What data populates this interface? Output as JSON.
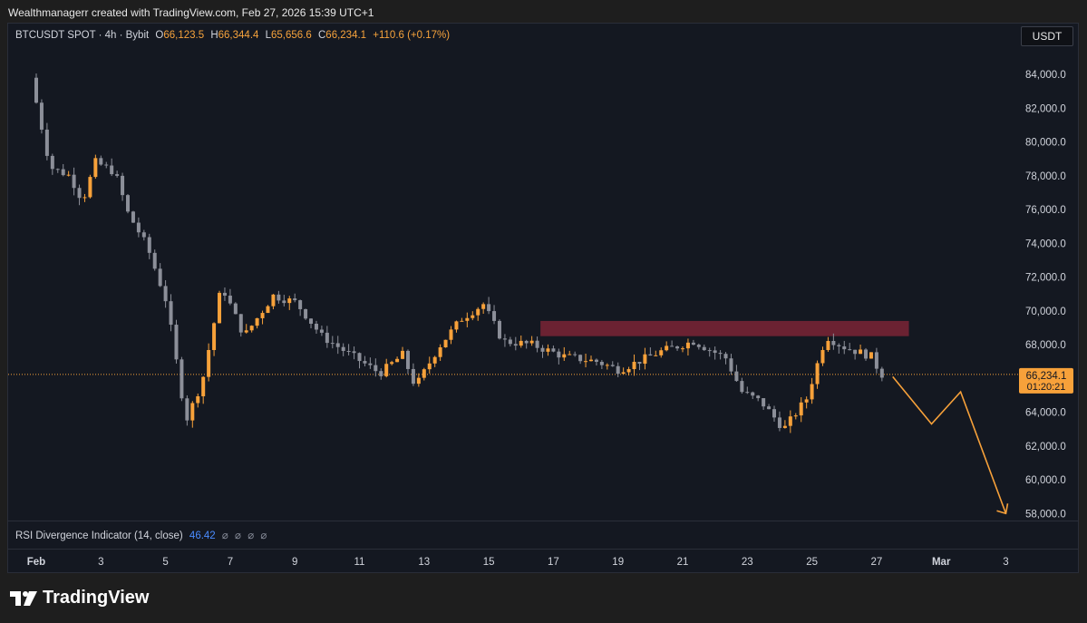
{
  "header": {
    "attribution": "Wealthmanagerr created with TradingView.com, Feb 27, 2026 15:39 UTC+1",
    "symbol": "BTCUSDT SPOT · 4h · Bybit",
    "o_label": "O",
    "o_value": "66,123.5",
    "h_label": "H",
    "h_value": "66,344.4",
    "l_label": "L",
    "l_value": "65,656.6",
    "c_label": "C",
    "c_value": "66,234.1",
    "change": "+110.6 (+0.17%)"
  },
  "currency_button": "USDT",
  "price_tag": {
    "price": "66,234.1",
    "countdown": "01:20:21"
  },
  "indicator": {
    "label": "RSI Divergence Indicator (14, close)",
    "value": "46.42",
    "icons": [
      "eye-slash-icon",
      "eye-slash-icon",
      "eye-slash-icon",
      "eye-slash-icon"
    ]
  },
  "brand": {
    "name": "TradingView",
    "icon": "tradingview-logo-icon"
  },
  "colors": {
    "up": "#f7a13a",
    "down": "#8c8f99",
    "background": "#141821",
    "zone": "#7a2535",
    "projection": "#f7a13a",
    "current_line": "#f7a13a"
  },
  "chart_data": {
    "type": "candlestick",
    "timeframe": "4h",
    "y_ticks": [
      84000,
      82000,
      80000,
      78000,
      76000,
      74000,
      72000,
      70000,
      68000,
      66000,
      64000,
      62000,
      60000,
      58000
    ],
    "y_tick_labels": [
      "84,000.0",
      "82,000.0",
      "80,000.0",
      "78,000.0",
      "76,000.0",
      "74,000.0",
      "72,000.0",
      "70,000.0",
      "68,000.0",
      "66,000.0",
      "64,000.0",
      "62,000.0",
      "60,000.0",
      "58,000.0"
    ],
    "x_ticks": [
      "Feb",
      "3",
      "5",
      "7",
      "9",
      "11",
      "13",
      "15",
      "17",
      "19",
      "21",
      "23",
      "25",
      "27",
      "Mar",
      "3"
    ],
    "x_tick_days": [
      1,
      3,
      5,
      7,
      9,
      11,
      13,
      15,
      17,
      19,
      21,
      23,
      25,
      27,
      29,
      31
    ],
    "current_price": 66234.1,
    "resistance_zone": {
      "from_day": 16.6,
      "to_day": 28.0,
      "low": 68500,
      "high": 69400
    },
    "projection_path": [
      {
        "day": 27.5,
        "price": 66100
      },
      {
        "day": 28.7,
        "price": 63300
      },
      {
        "day": 29.6,
        "price": 65200
      },
      {
        "day": 31.0,
        "price": 58000
      }
    ],
    "trend_keyframes": [
      {
        "day": 1.0,
        "price": 83800
      },
      {
        "day": 1.6,
        "price": 78500
      },
      {
        "day": 2.2,
        "price": 78000
      },
      {
        "day": 2.6,
        "price": 76500
      },
      {
        "day": 3.0,
        "price": 78800
      },
      {
        "day": 3.6,
        "price": 78200
      },
      {
        "day": 4.0,
        "price": 75800
      },
      {
        "day": 4.6,
        "price": 73800
      },
      {
        "day": 5.2,
        "price": 70500
      },
      {
        "day": 5.8,
        "price": 63500
      },
      {
        "day": 6.3,
        "price": 65800
      },
      {
        "day": 6.9,
        "price": 71500
      },
      {
        "day": 7.6,
        "price": 68500
      },
      {
        "day": 8.5,
        "price": 70900
      },
      {
        "day": 9.2,
        "price": 70500
      },
      {
        "day": 10.0,
        "price": 68500
      },
      {
        "day": 10.8,
        "price": 67500
      },
      {
        "day": 11.8,
        "price": 66300
      },
      {
        "day": 12.5,
        "price": 67400
      },
      {
        "day": 12.9,
        "price": 65500
      },
      {
        "day": 13.6,
        "price": 67800
      },
      {
        "day": 14.3,
        "price": 69500
      },
      {
        "day": 15.0,
        "price": 70400
      },
      {
        "day": 15.6,
        "price": 68200
      },
      {
        "day": 16.5,
        "price": 68000
      },
      {
        "day": 17.5,
        "price": 67300
      },
      {
        "day": 18.5,
        "price": 67000
      },
      {
        "day": 19.2,
        "price": 66500
      },
      {
        "day": 20.5,
        "price": 67600
      },
      {
        "day": 21.5,
        "price": 68200
      },
      {
        "day": 22.5,
        "price": 67200
      },
      {
        "day": 23.0,
        "price": 65200
      },
      {
        "day": 23.6,
        "price": 64600
      },
      {
        "day": 24.3,
        "price": 63000
      },
      {
        "day": 25.0,
        "price": 64800
      },
      {
        "day": 25.6,
        "price": 68500
      },
      {
        "day": 26.1,
        "price": 67900
      },
      {
        "day": 27.0,
        "price": 67300
      },
      {
        "day": 27.3,
        "price": 66234
      }
    ]
  }
}
